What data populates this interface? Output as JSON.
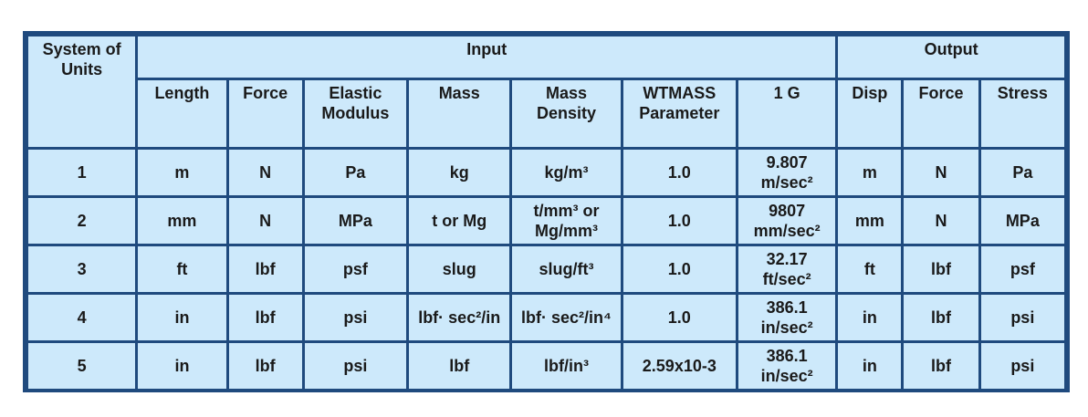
{
  "headers": {
    "system_of_units": "System of Units",
    "input": "Input",
    "output": "Output",
    "columns": [
      "Length",
      "Force",
      "Elastic Modulus",
      "Mass",
      "Mass Density",
      "WTMASS Parameter",
      "1 G",
      "Disp",
      "Force",
      "Stress"
    ]
  },
  "rows": [
    {
      "system": "1",
      "length": "m",
      "force": "N",
      "modulus": "Pa",
      "mass": "kg",
      "density": "kg/m³",
      "wtmass": "1.0",
      "g_val": "9.807",
      "g_unit": "m/sec²",
      "disp": "m",
      "out_force": "N",
      "stress": "Pa"
    },
    {
      "system": "2",
      "length": "mm",
      "force": "N",
      "modulus": "MPa",
      "mass": "t or Mg",
      "density": "t/mm³ or Mg/mm³",
      "wtmass": "1.0",
      "g_val": "9807",
      "g_unit": "mm/sec²",
      "disp": "mm",
      "out_force": "N",
      "stress": "MPa"
    },
    {
      "system": "3",
      "length": "ft",
      "force": "lbf",
      "modulus": "psf",
      "mass": "slug",
      "density": "slug/ft³",
      "wtmass": "1.0",
      "g_val": "32.17",
      "g_unit": "ft/sec²",
      "disp": "ft",
      "out_force": "lbf",
      "stress": "psf"
    },
    {
      "system": "4",
      "length": "in",
      "force": "lbf",
      "modulus": "psi",
      "mass": "lbf· sec²/in",
      "density": "lbf· sec²/in⁴",
      "wtmass": "1.0",
      "g_val": "386.1",
      "g_unit": "in/sec²",
      "disp": "in",
      "out_force": "lbf",
      "stress": "psi"
    },
    {
      "system": "5",
      "length": "in",
      "force": "lbf",
      "modulus": "psi",
      "mass": "lbf",
      "density": "lbf/in³",
      "wtmass": "2.59x10-3",
      "g_val": "386.1",
      "g_unit": "in/sec²",
      "disp": "in",
      "out_force": "lbf",
      "stress": "psi"
    }
  ],
  "colors": {
    "cell_bg": "#cde9fb",
    "border": "#1f4a7e"
  }
}
